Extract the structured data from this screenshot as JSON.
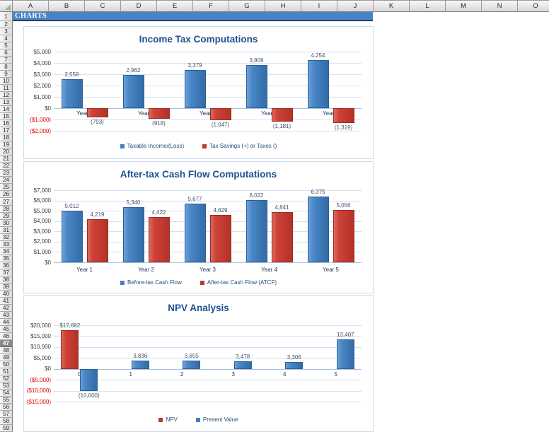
{
  "sheet": {
    "title_cell": "CHARTS",
    "column_headers": [
      "A",
      "B",
      "C",
      "D",
      "E",
      "F",
      "G",
      "H",
      "I",
      "J",
      "K",
      "L",
      "M",
      "N",
      "O"
    ],
    "row_count": 59,
    "selected_row": 47
  },
  "colors": {
    "title_bar_fill": "#4a82c8",
    "chart_title": "#1f5091",
    "bar_blue": "#4080c0",
    "bar_red": "#c4372d",
    "negative_tick_red": "#e00000",
    "legend_text": "#1f4e79",
    "gridline": "#d5e2f1",
    "zero_line": "#a9c3de"
  },
  "chart_data": [
    {
      "type": "bar",
      "title": "Income Tax Computations",
      "categories": [
        "Year 1",
        "Year 2",
        "Year 3",
        "Year 4",
        "Year 5"
      ],
      "category_labels_at": "zero-line",
      "ylim": [
        -2000,
        5000
      ],
      "grid": true,
      "legend_position": "bottom",
      "yticks": [
        {
          "label": "$5,000",
          "value": 5000
        },
        {
          "label": "$4,000",
          "value": 4000
        },
        {
          "label": "$3,000",
          "value": 3000
        },
        {
          "label": "$2,000",
          "value": 2000
        },
        {
          "label": "$1,000",
          "value": 1000
        },
        {
          "label": "$0",
          "value": 0
        },
        {
          "label": "($1,000)",
          "value": -1000
        },
        {
          "label": "($2,000)",
          "value": -2000
        }
      ],
      "series": [
        {
          "name": "Taxable Income/(Loss)",
          "color_key": "blue",
          "values": [
            2558,
            2962,
            3379,
            3809,
            4254
          ],
          "data_labels": [
            "2,558",
            "2,962",
            "3,379",
            "3,809",
            "4,254"
          ]
        },
        {
          "name": "Tax Savings (+) or Taxes ()",
          "color_key": "red",
          "values": [
            -793,
            -918,
            -1047,
            -1181,
            -1319
          ],
          "data_labels": [
            "(793)",
            "(918)",
            "(1,047)",
            "(1,181)",
            "(1,319)"
          ]
        }
      ]
    },
    {
      "type": "bar",
      "title": "After-tax Cash Flow Computations",
      "categories": [
        "Year 1",
        "Year 2",
        "Year 3",
        "Year 4",
        "Year 5"
      ],
      "category_labels_at": "below-plot",
      "ylim": [
        0,
        7000
      ],
      "grid": true,
      "legend_position": "bottom",
      "yticks": [
        {
          "label": "$7,000",
          "value": 7000
        },
        {
          "label": "$6,000",
          "value": 6000
        },
        {
          "label": "$5,000",
          "value": 5000
        },
        {
          "label": "$4,000",
          "value": 4000
        },
        {
          "label": "$3,000",
          "value": 3000
        },
        {
          "label": "$2,000",
          "value": 2000
        },
        {
          "label": "$1,000",
          "value": 1000
        },
        {
          "label": "$0",
          "value": 0
        }
      ],
      "series": [
        {
          "name": "Before-tax Cash Flow",
          "color_key": "blue",
          "values": [
            5012,
            5340,
            5677,
            6022,
            6375
          ],
          "data_labels": [
            "5,012",
            "5,340",
            "5,677",
            "6,022",
            "6,375"
          ]
        },
        {
          "name": "After-tax Cash Flow (ATCF)",
          "color_key": "red",
          "values": [
            4219,
            4422,
            4629,
            4841,
            5056
          ],
          "data_labels": [
            "4,219",
            "4,422",
            "4,629",
            "4,841",
            "5,056"
          ]
        }
      ]
    },
    {
      "type": "bar",
      "title": "NPV Analysis",
      "categories": [
        "0",
        "1",
        "2",
        "3",
        "4",
        "5"
      ],
      "category_labels_at": "zero-line",
      "ylim": [
        -15000,
        20000
      ],
      "grid": true,
      "legend_position": "bottom",
      "yticks": [
        {
          "label": "$20,000",
          "value": 20000
        },
        {
          "label": "$15,000",
          "value": 15000
        },
        {
          "label": "$10,000",
          "value": 10000
        },
        {
          "label": "$5,000",
          "value": 5000
        },
        {
          "label": "$0",
          "value": 0
        },
        {
          "label": "($5,000)",
          "value": -5000
        },
        {
          "label": "($10,000)",
          "value": -10000
        },
        {
          "label": "($15,000)",
          "value": -15000
        }
      ],
      "series": [
        {
          "name": "NPV",
          "color_key": "red",
          "values": [
            17682,
            null,
            null,
            null,
            null,
            null
          ],
          "data_labels": [
            "$17,682",
            "",
            "",
            "",
            "",
            ""
          ]
        },
        {
          "name": "Present Value",
          "color_key": "blue",
          "values": [
            -10000,
            3836,
            3655,
            3478,
            3306,
            13407
          ],
          "data_labels": [
            "(10,000)",
            "3,836",
            "3,655",
            "3,478",
            "3,306",
            "13,407"
          ]
        }
      ]
    }
  ]
}
